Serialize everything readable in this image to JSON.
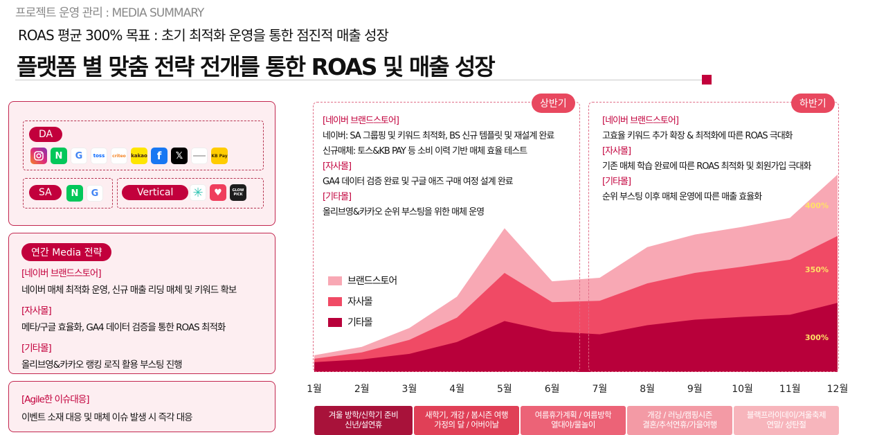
{
  "header": {
    "kicker": "프로젝트 운영 관리 : MEDIA SUMMARY",
    "subtitle": "ROAS 평균 300% 목표 : 초기 최적화 운영을 통한 점진적 매출 성장",
    "title": "플랫폼 별 맞춤 전략 전개를 통한 ROAS 및 매출 성장"
  },
  "media_panel": {
    "da_label": "DA",
    "da_icons": [
      "instagram-icon",
      "naver-icon",
      "google-icon",
      "toss-icon",
      "criteo-icon",
      "kakao-icon",
      "facebook-icon",
      "x-icon",
      "ownerclan-icon",
      "kbpay-icon"
    ],
    "da_icon_texts": {
      "kakao": "kakao",
      "kbpay": "KB Pay",
      "toss": "toss",
      "criteo": "criteo"
    },
    "sa_label": "SA",
    "sa_icons": [
      "naver-icon",
      "google-icon"
    ],
    "vertical_label": "Vertical",
    "vertical_icons": [
      "asterisk-app-icon",
      "heart-app-icon",
      "glowpick-icon"
    ],
    "glowpick_text": "GLOW PICK"
  },
  "strategy_panel": {
    "pill": "연간 Media 전략",
    "items": [
      {
        "tag": "[네이버 브랜드스토어]",
        "text": "네이버 매체 최적화 운영, 신규 매출 리딩 매체 및 키워드 확보"
      },
      {
        "tag": "[자사몰]",
        "text": "메타/구글 효율화, GA4 데이터 검증을 통한 ROAS 최적화"
      },
      {
        "tag": "[기타몰]",
        "text": "올리브영&카카오 랭킹 로직 활용 부스팅 진행"
      }
    ]
  },
  "agile_panel": {
    "tag": "[Agile한 이슈대응]",
    "text": "이벤트 소재 대응 및 매체 이슈 발생 시 즉각 대응"
  },
  "first_half": {
    "label": "상반기",
    "items": [
      {
        "tag": "[네이버 브랜드스토어]",
        "lines": [
          "네이버: SA 그룹핑 및 키워드 최적화, BS 신규 템플릿 및 재설계 완료",
          "신규매체: 토스&KB PAY 등 소비 이력 기반 매체 효율 테스트"
        ]
      },
      {
        "tag": "[자사몰]",
        "lines": [
          "GA4 데이터 검증 완료 및 구글 애즈 구매 여정 설계 완료"
        ]
      },
      {
        "tag": "[기타몰]",
        "lines": [
          "올리브영&카카오 순위 부스팅을 위한 매체 운영"
        ]
      }
    ]
  },
  "second_half": {
    "label": "하반기",
    "items": [
      {
        "tag": "[네이버 브랜드스토어]",
        "lines": [
          "고효율 키워드 추가 확장 & 최적화에 따른 ROAS 극대화"
        ]
      },
      {
        "tag": "[자사몰]",
        "lines": [
          "기존 매체 학습 완료에 따른 ROAS 최적화 및 회원가입 극대화"
        ]
      },
      {
        "tag": "[기타몰]",
        "lines": [
          "순위 부스팅 이후 매체 운영에 따른 매출 효율화"
        ]
      }
    ]
  },
  "seasons": [
    {
      "lines": [
        "겨울 방학/신학기 준비",
        "신년/설연휴"
      ],
      "color": "#a8123a"
    },
    {
      "lines": [
        "새학기, 개강 / 봄시즌 여행",
        "가정의 달 / 어버이날"
      ],
      "color": "#e04057"
    },
    {
      "lines": [
        "여름휴가계획 / 여름방학",
        "열대야/물놀이"
      ],
      "color": "#ec6377"
    },
    {
      "lines": [
        "개강 / 러닝/캠핑시즌",
        "결혼/추석연휴/가을여행"
      ],
      "color": "#f39aa5"
    },
    {
      "lines": [
        "블랙프라이데이/겨울축제",
        "연말/ 성탄절"
      ],
      "color": "#f7b5bc"
    }
  ],
  "chart_data": {
    "type": "area",
    "categories": [
      "1월",
      "2월",
      "3월",
      "4월",
      "5월",
      "6월",
      "7월",
      "8월",
      "9월",
      "10월",
      "11월",
      "12월"
    ],
    "stacked": true,
    "series": [
      {
        "name": "기타몰",
        "color": "#b8003a",
        "values": [
          14,
          18,
          26,
          43,
          73,
          58,
          54,
          67,
          75,
          79,
          82,
          99
        ]
      },
      {
        "name": "자사몰",
        "color": "#f04a65",
        "values": [
          5,
          10,
          20,
          35,
          69,
          42,
          48,
          60,
          67,
          72,
          79,
          96
        ]
      },
      {
        "name": "브랜드스토어",
        "color": "#f8a8b4",
        "values": [
          5,
          8,
          17,
          30,
          64,
          30,
          33,
          52,
          55,
          57,
          60,
          88
        ]
      }
    ],
    "data_labels": [
      {
        "text": "300%",
        "series": "기타몰"
      },
      {
        "text": "350%",
        "series": "자사몰"
      },
      {
        "text": "400%",
        "series": "브랜드스토어"
      }
    ],
    "ylim": [
      0,
      285
    ],
    "grid": false,
    "legend_position": "left-middle"
  }
}
